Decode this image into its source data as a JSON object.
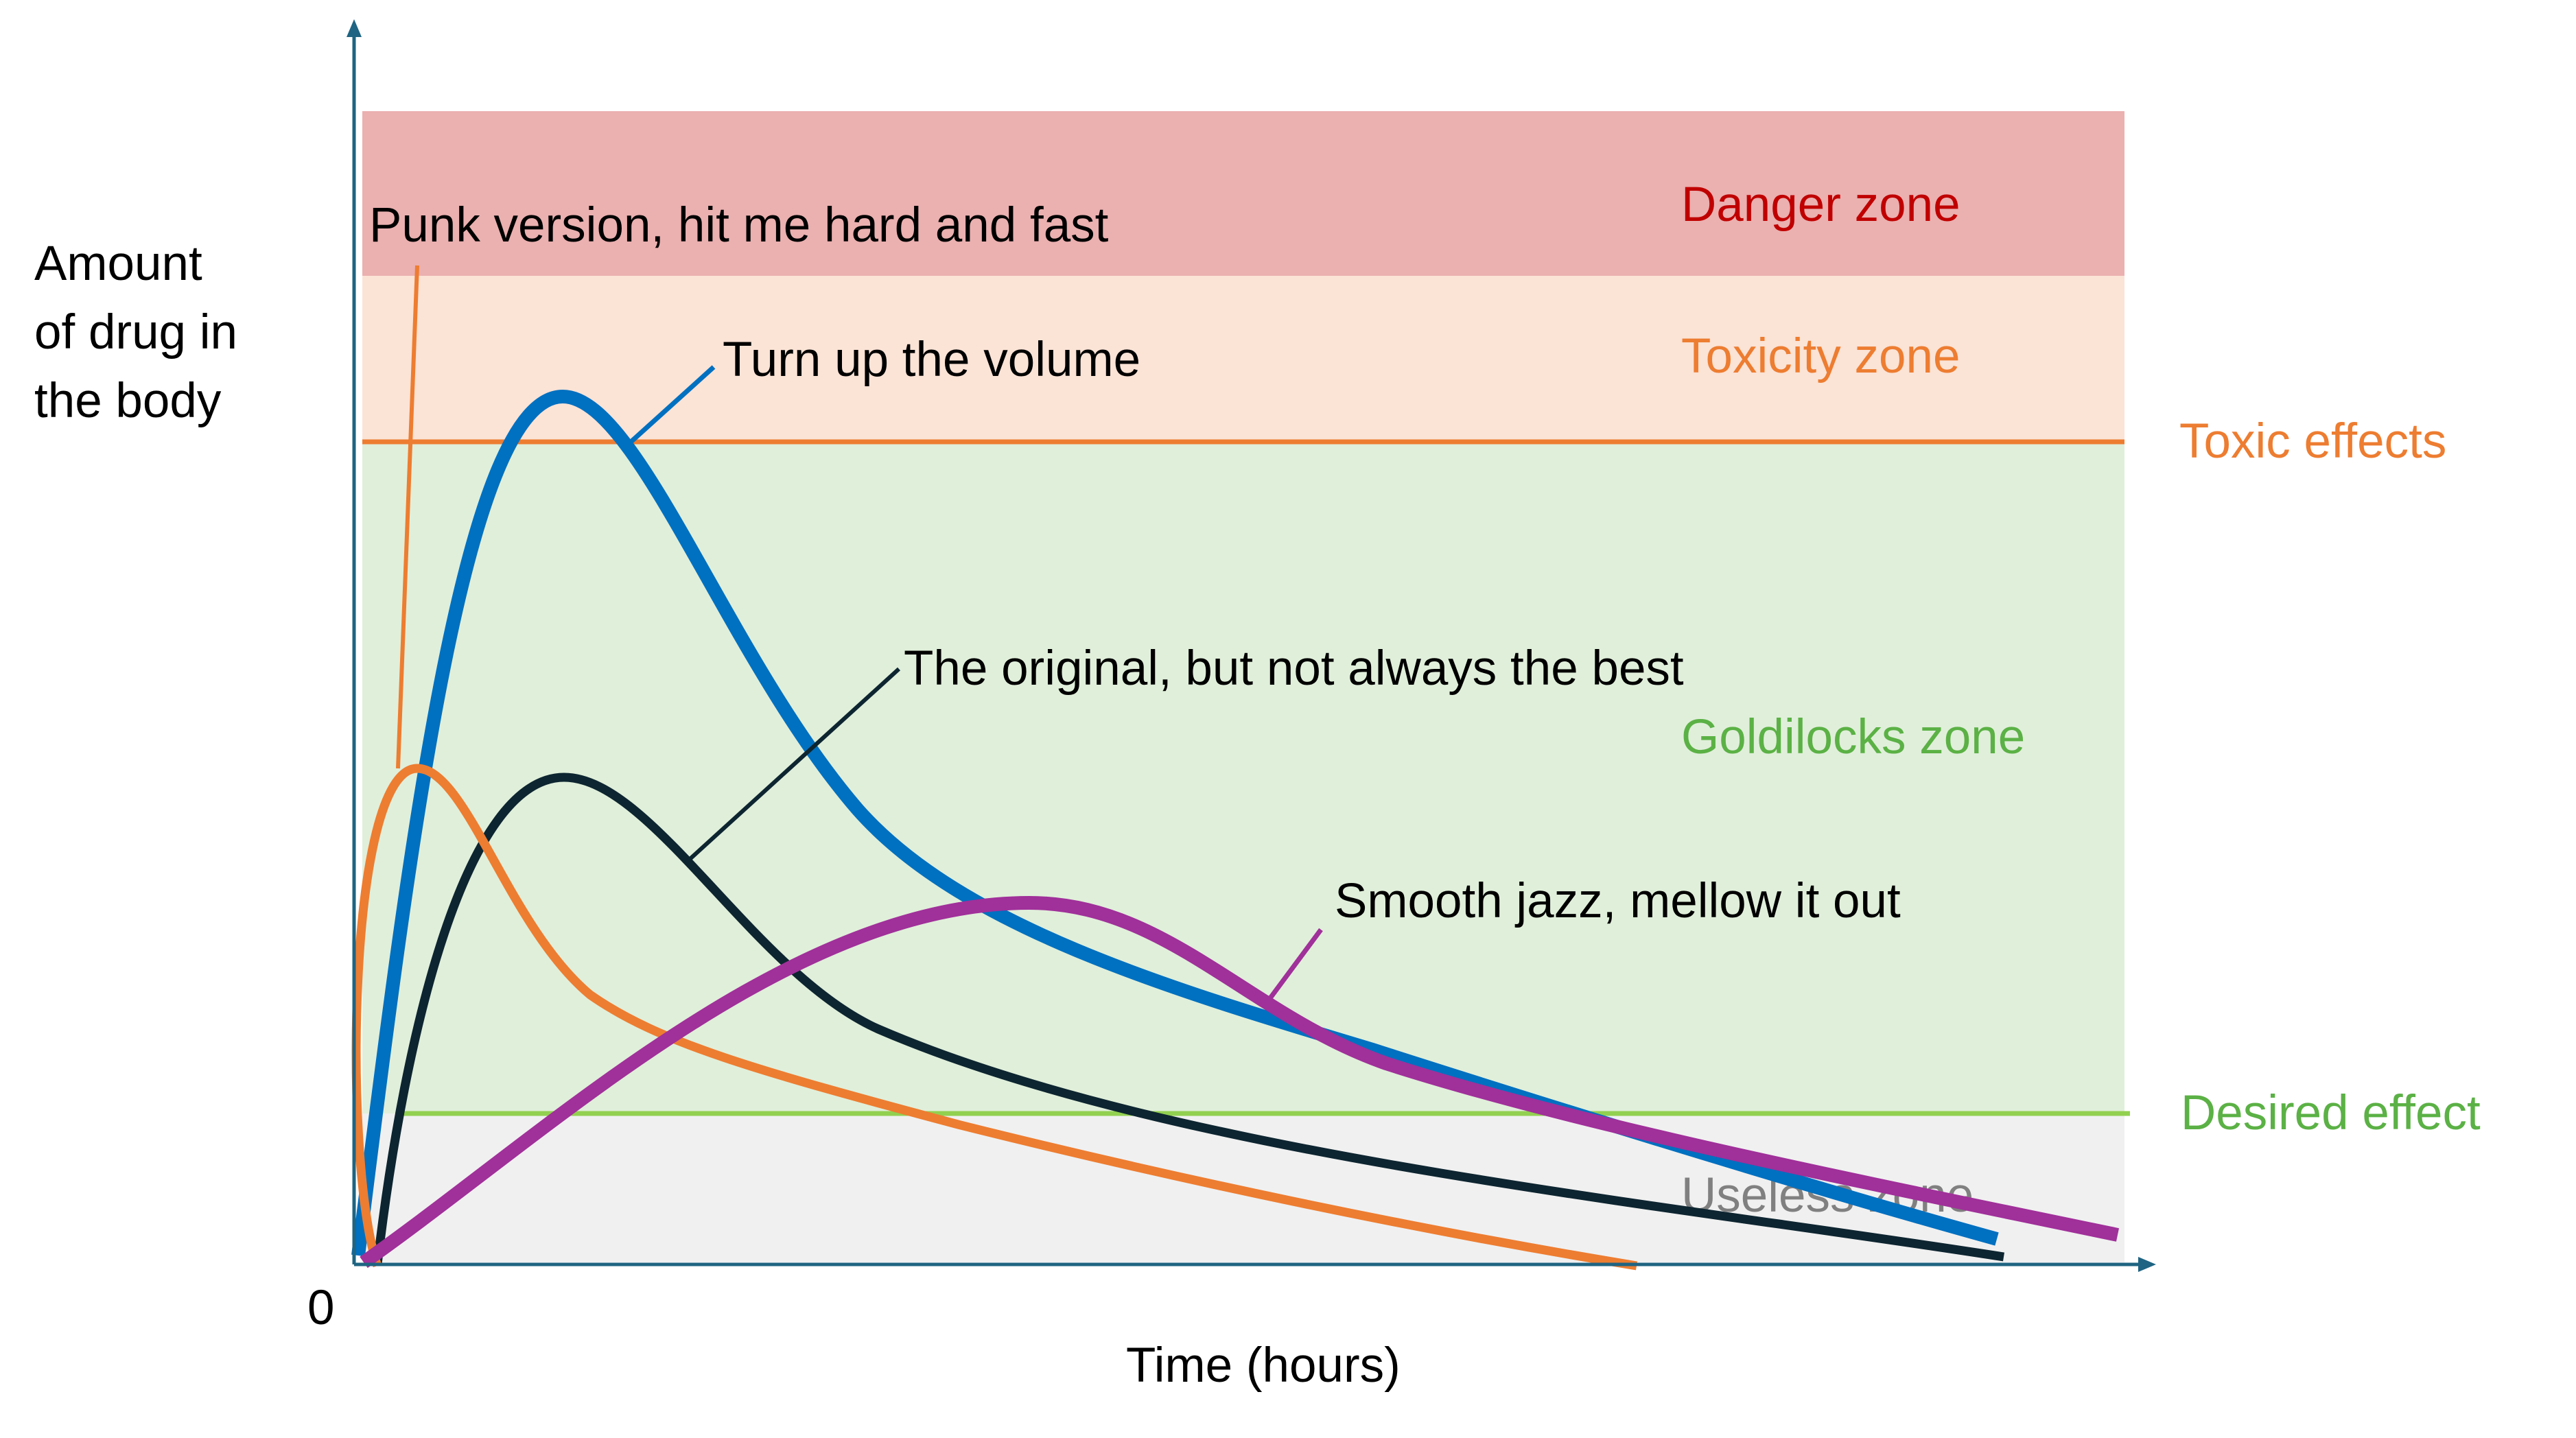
{
  "chart_data": {
    "type": "line",
    "xlabel": "Time (hours)",
    "ylabel": "Amount\nof drug in\nthe body",
    "origin_label": "0",
    "zones": [
      {
        "name": "Danger zone",
        "color": "#EBB0B0",
        "label_color": "#C00000"
      },
      {
        "name": "Toxicity zone",
        "color": "#FBE3D6",
        "label_color": "#ED7D31"
      },
      {
        "name": "Goldilocks zone",
        "color": "#E0EFDA",
        "label_color": "#5BB145"
      },
      {
        "name": "Useless zone",
        "color": "#F0F0F0",
        "label_color": "#808080"
      }
    ],
    "thresholds": [
      {
        "name": "Toxic effects",
        "color": "#ED7D31"
      },
      {
        "name": "Desired effect",
        "color": "#92D050",
        "label_color": "#5BB145"
      }
    ],
    "series": [
      {
        "label": "Turn up the volume",
        "color": "#0070C0"
      },
      {
        "label": "The original, but not always the best",
        "color": "#0D2530"
      },
      {
        "label": "Punk version, hit me hard and fast",
        "color": "#ED7D31"
      },
      {
        "label": "Smooth jazz, mellow it out",
        "color": "#A0309A"
      }
    ],
    "axis_color": "#1F6482"
  }
}
